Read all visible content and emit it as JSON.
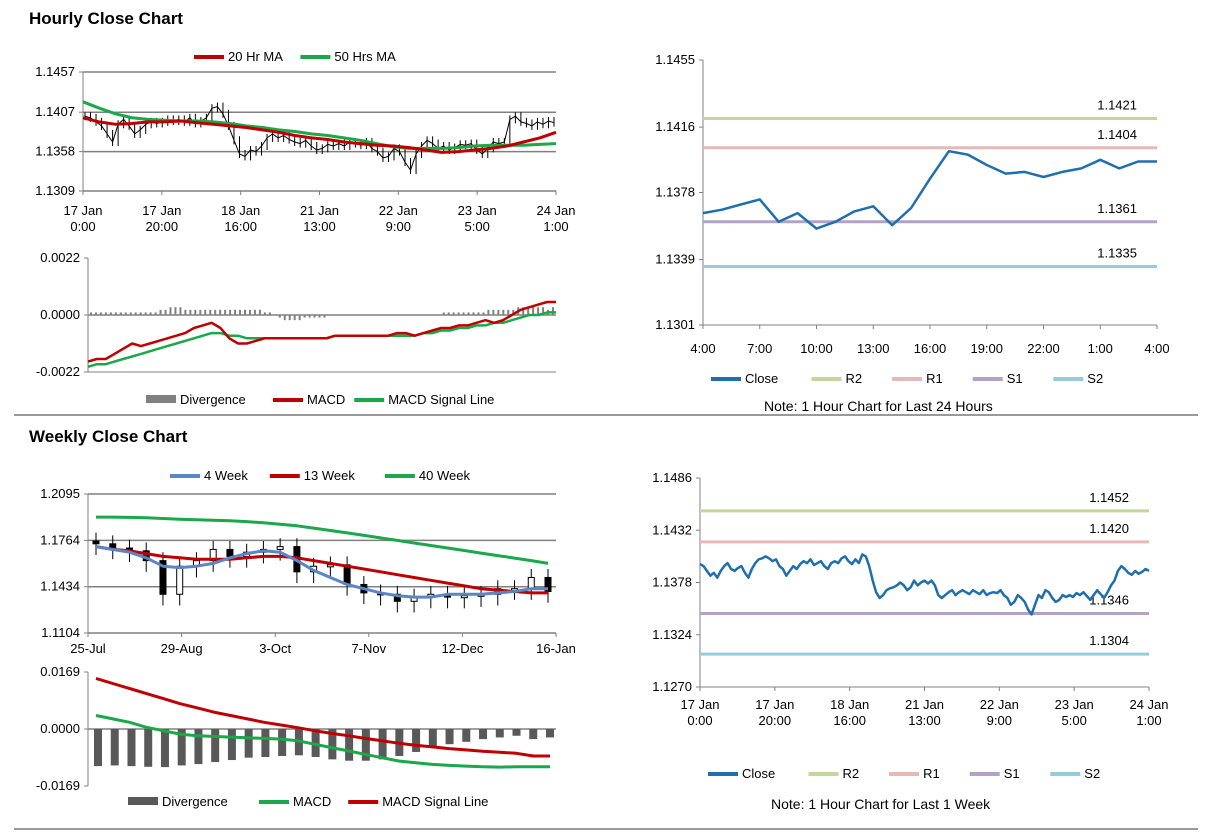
{
  "sections": {
    "hourly_title": "Hourly Close Chart",
    "weekly_title": "Weekly Close Chart"
  },
  "colors": {
    "red": "#c00000",
    "green": "#1aa84a",
    "gray": "#808080",
    "dark_gray": "#595959",
    "blue4": "#5b86c5",
    "close_blue": "#1f6fad",
    "r2": "#c3d69b",
    "r1": "#e6b9b8",
    "s1": "#b3a2c7",
    "s2": "#93cddd"
  },
  "chart_data": [
    {
      "id": "hourly_price",
      "type": "line",
      "title": "",
      "legend": [
        "20 Hr MA",
        "50 Hrs MA"
      ],
      "yticks": [
        "1.1457",
        "1.1407",
        "1.1358",
        "1.1309"
      ],
      "ylim": [
        1.1309,
        1.1457
      ],
      "xticks": [
        [
          "17 Jan",
          "0:00"
        ],
        [
          "17 Jan",
          "20:00"
        ],
        [
          "18 Jan",
          "16:00"
        ],
        [
          "21 Jan",
          "13:00"
        ],
        [
          "22 Jan",
          "9:00"
        ],
        [
          "23 Jan",
          "5:00"
        ],
        [
          "24 Jan",
          "1:00"
        ]
      ],
      "close": [
        1.1402,
        1.14,
        1.1395,
        1.139,
        1.138,
        1.137,
        1.1392,
        1.1398,
        1.139,
        1.138,
        1.1385,
        1.1392,
        1.1395,
        1.1393,
        1.1395,
        1.1398,
        1.1396,
        1.1398,
        1.1395,
        1.14,
        1.1393,
        1.1396,
        1.14,
        1.1412,
        1.1414,
        1.1405,
        1.139,
        1.1372,
        1.1355,
        1.1352,
        1.136,
        1.1358,
        1.1365,
        1.1375,
        1.138,
        1.1375,
        1.1378,
        1.1373,
        1.137,
        1.1368,
        1.1372,
        1.1365,
        1.136,
        1.1362,
        1.1367,
        1.1365,
        1.1368,
        1.1365,
        1.137,
        1.1368,
        1.1366,
        1.137,
        1.1362,
        1.1358,
        1.135,
        1.1352,
        1.1362,
        1.1358,
        1.1345,
        1.1335,
        1.1355,
        1.1365,
        1.1372,
        1.1368,
        1.1362,
        1.1365,
        1.136,
        1.1363,
        1.1367,
        1.1366,
        1.1368,
        1.136,
        1.1355,
        1.1362,
        1.137,
        1.1368,
        1.137,
        1.1398,
        1.1402,
        1.1395,
        1.1393,
        1.139,
        1.1395,
        1.1392,
        1.1396,
        1.1394
      ],
      "series": [
        {
          "name": "20 Hr MA",
          "values": [
            1.14,
            1.1395,
            1.1392,
            1.1393,
            1.1395,
            1.1395,
            1.1396,
            1.1394,
            1.1392,
            1.139,
            1.1388,
            1.1385,
            1.1382,
            1.1378,
            1.1375,
            1.1373,
            1.137,
            1.1368,
            1.1366,
            1.1365,
            1.1363,
            1.136,
            1.1357,
            1.1358,
            1.136,
            1.1362,
            1.1365,
            1.137,
            1.1375,
            1.1382
          ]
        },
        {
          "name": "50 Hrs MA",
          "values": [
            1.142,
            1.1412,
            1.1405,
            1.14,
            1.1398,
            1.1397,
            1.1396,
            1.1396,
            1.1395,
            1.1393,
            1.139,
            1.1388,
            1.1385,
            1.1383,
            1.138,
            1.1378,
            1.1375,
            1.1372,
            1.1368,
            1.1364,
            1.1362,
            1.1362,
            1.1362,
            1.1363,
            1.1365,
            1.1366,
            1.1366,
            1.1366,
            1.1367,
            1.1368
          ]
        }
      ]
    },
    {
      "id": "hourly_macd",
      "type": "line",
      "yticks": [
        "0.0022",
        "0.0000",
        "-0.0022"
      ],
      "ylim": [
        -0.0022,
        0.0022
      ],
      "legend": [
        "Divergence",
        "MACD",
        "MACD Signal Line"
      ],
      "divergence": [
        0.0001,
        0.0001,
        0.0001,
        0.0001,
        0.0001,
        0.0001,
        0.0001,
        0.0001,
        0.0001,
        0.0001,
        0.0001,
        0.0001,
        0.0001,
        0.0001,
        0.0002,
        0.0002,
        0.0003,
        0.0003,
        0.0003,
        0.0002,
        0.0002,
        0.0002,
        0.0002,
        0.0002,
        0.0002,
        0.0002,
        0.0002,
        0.0002,
        0.0002,
        0.0002,
        0.0002,
        0.0002,
        0.0002,
        0.0002,
        0.0002,
        0.0001,
        0.0001,
        0.0,
        -0.0001,
        -0.0002,
        -0.0002,
        -0.0002,
        -0.0002,
        -0.0001,
        -0.0001,
        -0.0001,
        -0.0001,
        -0.0001,
        0.0,
        0.0,
        0.0,
        0.0,
        0.0,
        0.0,
        0.0,
        0.0,
        0.0,
        0.0,
        0.0,
        0.0,
        0.0,
        0.0,
        0.0,
        0.0,
        0.0,
        0.0,
        0.0,
        0.0,
        0.0,
        0.0,
        0.0,
        0.0001,
        0.0001,
        0.0001,
        0.0001,
        0.0001,
        0.0001,
        0.0001,
        0.0001,
        0.0001,
        0.0002,
        0.0002,
        0.0002,
        0.0002,
        0.0002,
        0.0002,
        0.0003,
        0.0003,
        0.0003,
        0.0003,
        0.0003,
        0.0003,
        0.0002,
        0.0003
      ],
      "series": [
        {
          "name": "MACD",
          "values": [
            -0.0018,
            -0.0017,
            -0.0017,
            -0.0015,
            -0.0013,
            -0.0011,
            -0.0012,
            -0.0011,
            -0.001,
            -0.0009,
            -0.0008,
            -0.0007,
            -0.0005,
            -0.0004,
            -0.0003,
            -0.0005,
            -0.0009,
            -0.0011,
            -0.0011,
            -0.001,
            -0.0009,
            -0.0009,
            -0.0009,
            -0.0009,
            -0.0009,
            -0.0009,
            -0.0009,
            -0.0009,
            -0.0008,
            -0.0008,
            -0.0008,
            -0.0008,
            -0.0008,
            -0.0008,
            -0.0008,
            -0.0007,
            -0.0007,
            -0.0008,
            -0.0007,
            -0.0006,
            -0.0005,
            -0.0005,
            -0.0004,
            -0.0004,
            -0.0003,
            -0.0002,
            -0.0003,
            -0.0002,
            0.0,
            0.0002,
            0.0003,
            0.0004,
            0.0005,
            0.0005
          ]
        },
        {
          "name": "MACD Signal Line",
          "values": [
            -0.002,
            -0.0019,
            -0.0019,
            -0.0018,
            -0.0017,
            -0.0016,
            -0.0015,
            -0.0014,
            -0.0013,
            -0.0012,
            -0.0011,
            -0.001,
            -0.0009,
            -0.0008,
            -0.0007,
            -0.0007,
            -0.0008,
            -0.0008,
            -0.0009,
            -0.0009,
            -0.0009,
            -0.0009,
            -0.0009,
            -0.0009,
            -0.0009,
            -0.0009,
            -0.0009,
            -0.0009,
            -0.0008,
            -0.0008,
            -0.0008,
            -0.0008,
            -0.0008,
            -0.0008,
            -0.0008,
            -0.0008,
            -0.0008,
            -0.0008,
            -0.0007,
            -0.0007,
            -0.0006,
            -0.0006,
            -0.0005,
            -0.0005,
            -0.0004,
            -0.0004,
            -0.0003,
            -0.0003,
            -0.0002,
            -0.0001,
            0.0,
            0.0,
            0.0001,
            0.0001
          ]
        }
      ]
    },
    {
      "id": "hourly_levels",
      "type": "line",
      "yticks": [
        "1.1455",
        "1.1416",
        "1.1378",
        "1.1339",
        "1.1301"
      ],
      "ylim": [
        1.1301,
        1.1455
      ],
      "xticks": [
        "4:00",
        "7:00",
        "10:00",
        "13:00",
        "16:00",
        "19:00",
        "22:00",
        "1:00",
        "4:00"
      ],
      "close": [
        1.1366,
        1.1368,
        1.1371,
        1.1374,
        1.1361,
        1.1366,
        1.1357,
        1.1361,
        1.1367,
        1.137,
        1.1359,
        1.1369,
        1.1386,
        1.1402,
        1.14,
        1.1394,
        1.1389,
        1.139,
        1.1387,
        1.139,
        1.1392,
        1.1397,
        1.1392,
        1.1396,
        1.1396
      ],
      "levels": [
        {
          "name": "R2",
          "label": "1.1421",
          "value": 1.1421
        },
        {
          "name": "R1",
          "label": "1.1404",
          "value": 1.1404
        },
        {
          "name": "S1",
          "label": "1.1361",
          "value": 1.1361
        },
        {
          "name": "S2",
          "label": "1.1335",
          "value": 1.1335
        }
      ],
      "legend": [
        "Close",
        "R2",
        "R1",
        "S1",
        "S2"
      ],
      "note": "Note: 1 Hour Chart for Last 24 Hours"
    },
    {
      "id": "weekly_price",
      "type": "line",
      "legend": [
        "4 Week",
        "13 Week",
        "40 Week"
      ],
      "yticks": [
        "1.2095",
        "1.1764",
        "1.1434",
        "1.1104"
      ],
      "ylim": [
        1.1104,
        1.2095
      ],
      "xticks": [
        "25-Jul",
        "29-Aug",
        "3-Oct",
        "7-Nov",
        "12-Dec",
        "16-Jan"
      ],
      "close": [
        1.174,
        1.171,
        1.169,
        1.162,
        1.138,
        1.158,
        1.162,
        1.17,
        1.165,
        1.168,
        1.17,
        1.172,
        1.154,
        1.158,
        1.159,
        1.145,
        1.139,
        1.138,
        1.133,
        1.136,
        1.138,
        1.136,
        1.137,
        1.138,
        1.142,
        1.142,
        1.15,
        1.14
      ],
      "series": [
        {
          "name": "4 Week",
          "values": [
            1.172,
            1.17,
            1.168,
            1.164,
            1.158,
            1.157,
            1.158,
            1.16,
            1.164,
            1.167,
            1.169,
            1.168,
            1.162,
            1.155,
            1.15,
            1.145,
            1.142,
            1.139,
            1.137,
            1.136,
            1.136,
            1.138,
            1.138,
            1.138,
            1.139,
            1.14,
            1.142,
            1.142
          ]
        },
        {
          "name": "13 Week",
          "values": [
            1.172,
            1.17,
            1.169,
            1.167,
            1.165,
            1.164,
            1.163,
            1.163,
            1.163,
            1.164,
            1.165,
            1.165,
            1.164,
            1.162,
            1.16,
            1.158,
            1.156,
            1.154,
            1.152,
            1.15,
            1.148,
            1.146,
            1.144,
            1.142,
            1.141,
            1.14,
            1.139,
            1.139
          ]
        },
        {
          "name": "40 Week",
          "values": [
            1.193,
            1.193,
            1.1928,
            1.1925,
            1.192,
            1.1915,
            1.1912,
            1.1908,
            1.1904,
            1.1898,
            1.189,
            1.188,
            1.1868,
            1.1852,
            1.1835,
            1.1818,
            1.18,
            1.1782,
            1.1764,
            1.1746,
            1.1728,
            1.171,
            1.1692,
            1.1674,
            1.1656,
            1.1638,
            1.162,
            1.16
          ]
        }
      ]
    },
    {
      "id": "weekly_macd",
      "type": "line",
      "yticks": [
        "0.0169",
        "0.0000",
        "-0.0169"
      ],
      "ylim": [
        -0.0169,
        0.0169
      ],
      "legend": [
        "Divergence",
        "MACD",
        "MACD Signal Line"
      ],
      "divergence": [
        -0.011,
        -0.0108,
        -0.011,
        -0.0112,
        -0.0113,
        -0.0108,
        -0.0104,
        -0.0098,
        -0.0092,
        -0.0085,
        -0.0083,
        -0.008,
        -0.0078,
        -0.0083,
        -0.009,
        -0.0094,
        -0.0094,
        -0.009,
        -0.008,
        -0.0068,
        -0.0055,
        -0.0045,
        -0.0038,
        -0.003,
        -0.0025,
        -0.002,
        -0.003,
        -0.0025
      ],
      "series": [
        {
          "name": "MACD",
          "values": [
            0.004,
            0.003,
            0.002,
            0.0005,
            -0.0005,
            -0.0015,
            -0.002,
            -0.0022,
            -0.0024,
            -0.0026,
            -0.0028,
            -0.003,
            -0.0035,
            -0.0045,
            -0.0055,
            -0.0065,
            -0.0075,
            -0.0085,
            -0.0095,
            -0.01,
            -0.0105,
            -0.0108,
            -0.011,
            -0.0112,
            -0.0113,
            -0.0112,
            -0.0112,
            -0.0112
          ]
        },
        {
          "name": "MACD Signal Line",
          "values": [
            0.015,
            0.0135,
            0.012,
            0.0105,
            0.009,
            0.0075,
            0.0063,
            0.005,
            0.004,
            0.003,
            0.002,
            0.0012,
            0.0004,
            -0.0005,
            -0.0013,
            -0.002,
            -0.0028,
            -0.0035,
            -0.0042,
            -0.0048,
            -0.0053,
            -0.0058,
            -0.0062,
            -0.0066,
            -0.0069,
            -0.0072,
            -0.008,
            -0.008
          ]
        }
      ]
    },
    {
      "id": "weekly_levels",
      "type": "line",
      "yticks": [
        "1.1486",
        "1.1432",
        "1.1378",
        "1.1324",
        "1.1270"
      ],
      "ylim": [
        1.127,
        1.1486
      ],
      "xticks": [
        [
          "17 Jan",
          "0:00"
        ],
        [
          "17 Jan",
          "20:00"
        ],
        [
          "18 Jan",
          "16:00"
        ],
        [
          "21 Jan",
          "13:00"
        ],
        [
          "22 Jan",
          "9:00"
        ],
        [
          "23 Jan",
          "5:00"
        ],
        [
          "24 Jan",
          "1:00"
        ]
      ],
      "close": [
        1.1397,
        1.1395,
        1.139,
        1.1385,
        1.1388,
        1.1383,
        1.139,
        1.1395,
        1.1398,
        1.1392,
        1.139,
        1.1393,
        1.1395,
        1.1388,
        1.1383,
        1.1392,
        1.1398,
        1.1402,
        1.1403,
        1.1405,
        1.1403,
        1.14,
        1.1402,
        1.1395,
        1.1392,
        1.1385,
        1.139,
        1.1395,
        1.1392,
        1.1397,
        1.14,
        1.1398,
        1.1402,
        1.1396,
        1.1398,
        1.14,
        1.1395,
        1.1392,
        1.1398,
        1.14,
        1.1398,
        1.1403,
        1.1405,
        1.14,
        1.1397,
        1.1402,
        1.1398,
        1.1407,
        1.1405,
        1.1395,
        1.138,
        1.1368,
        1.1362,
        1.1365,
        1.137,
        1.1372,
        1.1373,
        1.1375,
        1.1378,
        1.1375,
        1.137,
        1.1373,
        1.138,
        1.1375,
        1.1378,
        1.138,
        1.1377,
        1.138,
        1.1375,
        1.1365,
        1.1362,
        1.1365,
        1.1368,
        1.137,
        1.1365,
        1.1368,
        1.137,
        1.1368,
        1.1366,
        1.137,
        1.1368,
        1.1366,
        1.137,
        1.1365,
        1.1367,
        1.1368,
        1.1367,
        1.137,
        1.1365,
        1.1362,
        1.1355,
        1.1358,
        1.1365,
        1.1362,
        1.1358,
        1.135,
        1.1345,
        1.1355,
        1.1365,
        1.1362,
        1.137,
        1.1368,
        1.1362,
        1.1358,
        1.136,
        1.1365,
        1.1363,
        1.1365,
        1.1363,
        1.1367,
        1.1365,
        1.1368,
        1.1364,
        1.136,
        1.1365,
        1.137,
        1.1366,
        1.1362,
        1.1368,
        1.1375,
        1.138,
        1.139,
        1.1395,
        1.1392,
        1.1388,
        1.1386,
        1.139,
        1.1387,
        1.1389,
        1.1392,
        1.139
      ],
      "levels": [
        {
          "name": "R2",
          "label": "1.1452",
          "value": 1.1452
        },
        {
          "name": "R1",
          "label": "1.1420",
          "value": 1.142
        },
        {
          "name": "S1",
          "label": "1.1346",
          "value": 1.1346
        },
        {
          "name": "S2",
          "label": "1.1304",
          "value": 1.1304
        }
      ],
      "legend": [
        "Close",
        "R2",
        "R1",
        "S1",
        "S2"
      ],
      "note": "Note: 1 Hour Chart for Last 1 Week"
    }
  ]
}
